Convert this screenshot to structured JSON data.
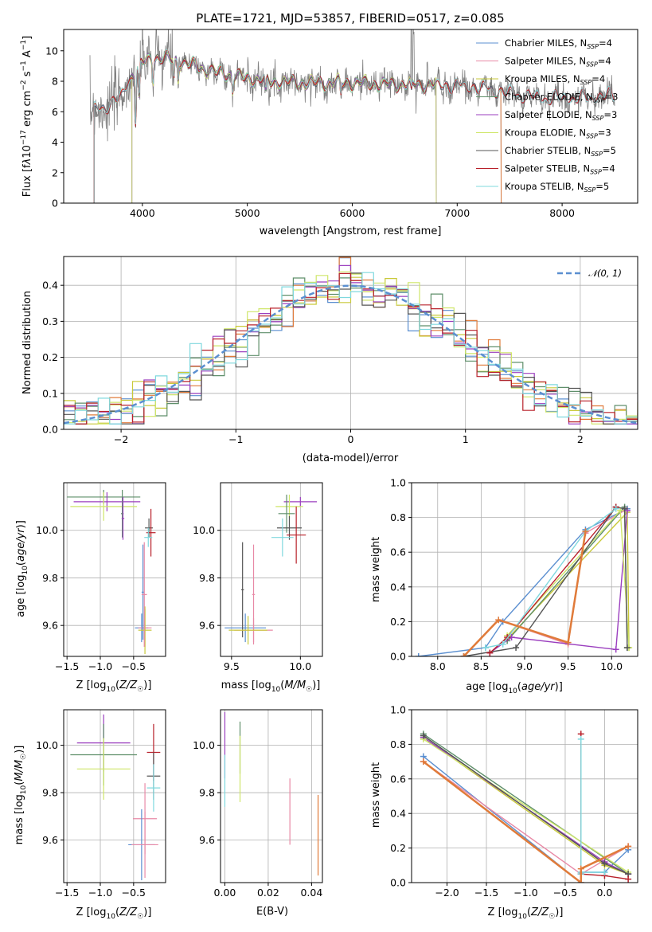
{
  "colors": {
    "Chabrier MILES": "#5b8fd0",
    "Salpeter MILES": "#e889a6",
    "Kroupa MILES": "#c9c93a",
    "Chabrier ELODIE": "#5f8f6a",
    "Salpeter ELODIE": "#9b3fbf",
    "Kroupa ELODIE": "#cfe66a",
    "Chabrier STELIB": "#555555",
    "Salpeter STELIB": "#b8202a",
    "Kroupa STELIB": "#7fd8de",
    "data": "#808080",
    "model_thick": "#e07b3a",
    "gaussian": "#5b8fd0"
  },
  "chart_data": [
    {
      "id": "spectrum",
      "type": "line",
      "title": "PLATE=1721, MJD=53857, FIBERID=0517, z=0.085",
      "xlabel": "wavelength [Angstrom, rest frame]",
      "ylabel": "Flux [fλ10⁻¹⁷ erg cm⁻² s⁻¹ A⁻¹]",
      "xlim": [
        3250,
        8720
      ],
      "ylim": [
        0,
        11.4
      ],
      "xticks": [
        "4000",
        "5000",
        "6000",
        "7000",
        "8000"
      ],
      "xtick_values": [
        4000,
        5000,
        6000,
        7000,
        8000
      ],
      "yticks": [
        "0",
        "2",
        "4",
        "6",
        "8",
        "10"
      ],
      "ytick_values": [
        0,
        2,
        4,
        6,
        8,
        10
      ],
      "legend_position": "top-right",
      "legend": [
        "Chabrier MILES, N_SSP=4",
        "Salpeter MILES, N_SSP=4",
        "Kroupa MILES, N_SSP=4",
        "Chabrier ELODIE, N_SSP=3",
        "Salpeter ELODIE, N_SSP=3",
        "Kroupa ELODIE, N_SSP=3",
        "Chabrier STELIB, N_SSP=5",
        "Salpeter STELIB, N_SSP=4",
        "Kroupa STELIB, N_SSP=5"
      ],
      "continuum": {
        "x": [
          3500,
          3650,
          3800,
          3900,
          4000,
          4100,
          4300,
          4500,
          4700,
          5000,
          5200,
          5500,
          6000,
          6300,
          6600,
          7000,
          7200,
          7500,
          7800,
          8200,
          8500
        ],
        "y": [
          6.0,
          6.3,
          7.0,
          8.4,
          9.2,
          9.6,
          9.4,
          9.0,
          8.6,
          8.2,
          8.0,
          7.9,
          7.9,
          7.8,
          7.8,
          7.7,
          7.6,
          7.2,
          6.9,
          6.9,
          7.1
        ]
      }
    },
    {
      "id": "residuals",
      "type": "line",
      "title": "",
      "xlabel": "(data-model)/error",
      "ylabel": "Normed distribution",
      "xlim": [
        -2.5,
        2.5
      ],
      "ylim": [
        0,
        0.48
      ],
      "xticks": [
        "−2",
        "−1",
        "0",
        "1",
        "2"
      ],
      "xtick_values": [
        -2,
        -1,
        0,
        1,
        2
      ],
      "yticks": [
        "0.0",
        "0.1",
        "0.2",
        "0.3",
        "0.4"
      ],
      "ytick_values": [
        0,
        0.1,
        0.2,
        0.3,
        0.4
      ],
      "grid": true,
      "legend_position": "top-right",
      "legend": [
        "𝒩(0, 1)"
      ],
      "bin_width": 0.1
    },
    {
      "id": "age-vs-Z",
      "type": "scatter",
      "xlabel": "Z [log₁₀(Z/Z☉)]",
      "ylabel": "age  [log₁₀(age/yr)]",
      "xlim": [
        -1.55,
        -0.02
      ],
      "ylim": [
        9.47,
        10.2
      ],
      "xticks": [
        "−1.5",
        "−1.0",
        "−0.5"
      ],
      "xtick_values": [
        -1.5,
        -1.0,
        -0.5
      ],
      "yticks": [
        "9.6",
        "9.8",
        "10.0"
      ],
      "ytick_values": [
        9.6,
        9.8,
        10.0
      ],
      "grid": true,
      "errorbars": [
        {
          "c": "Chabrier ELODIE",
          "x": -0.95,
          "xerr": 0.55,
          "y": 10.14,
          "yerr": 0.03
        },
        {
          "c": "Salpeter ELODIE",
          "x": -0.9,
          "xerr": 0.5,
          "y": 10.12,
          "yerr": 0.04
        },
        {
          "c": "Kroupa ELODIE",
          "x": -0.95,
          "xerr": 0.5,
          "y": 10.1,
          "yerr": 0.06
        },
        {
          "c": "Chabrier ELODIE",
          "x": -0.67,
          "xerr": 0.02,
          "y": 10.07,
          "yerr": 0.1
        },
        {
          "c": "Salpeter ELODIE",
          "x": -0.66,
          "xerr": 0.02,
          "y": 10.05,
          "yerr": 0.09
        },
        {
          "c": "Chabrier STELIB",
          "x": -0.27,
          "xerr": 0.06,
          "y": 10.01,
          "yerr": 0.04
        },
        {
          "c": "Salpeter STELIB",
          "x": -0.24,
          "xerr": 0.07,
          "y": 9.99,
          "yerr": 0.1
        },
        {
          "c": "Kroupa STELIB",
          "x": -0.28,
          "xerr": 0.06,
          "y": 9.97,
          "yerr": 0.04
        },
        {
          "c": "Chabrier MILES",
          "x": -0.38,
          "xerr": 0.1,
          "y": 9.59,
          "yerr": 0.06
        },
        {
          "c": "Salpeter MILES",
          "x": -0.33,
          "xerr": 0.1,
          "y": 9.59,
          "yerr": 0.08
        },
        {
          "c": "Chabrier MILES",
          "x": -0.36,
          "xerr": 0.02,
          "y": 9.74,
          "yerr": 0.2
        },
        {
          "c": "Kroupa MILES",
          "x": -0.33,
          "xerr": 0.1,
          "y": 9.58,
          "yerr": 0.1
        },
        {
          "c": "Salpeter MILES",
          "x": -0.34,
          "xerr": 0.04,
          "y": 9.73,
          "yerr": 0.22
        }
      ]
    },
    {
      "id": "age-vs-mass",
      "type": "scatter",
      "xlabel": "mass [log₁₀(M/M☉)]",
      "ylabel": "",
      "xlim": [
        9.42,
        10.16
      ],
      "ylim": [
        9.47,
        10.2
      ],
      "xticks": [
        "9.5",
        "10.0"
      ],
      "xtick_values": [
        9.5,
        10.0
      ],
      "yticks": [
        "9.6",
        "9.8",
        "10.0"
      ],
      "ytick_values": [
        9.6,
        9.8,
        10.0
      ],
      "grid": true,
      "errorbars": [
        {
          "c": "Salpeter ELODIE",
          "x": 10.0,
          "xerr": 0.12,
          "y": 10.12,
          "yerr": 0.02
        },
        {
          "c": "Kroupa ELODIE",
          "x": 9.92,
          "xerr": 0.1,
          "y": 10.1,
          "yerr": 0.05
        },
        {
          "c": "Chabrier ELODIE",
          "x": 9.9,
          "xerr": 0.06,
          "y": 10.07,
          "yerr": 0.08
        },
        {
          "c": "Chabrier STELIB",
          "x": 9.92,
          "xerr": 0.09,
          "y": 10.01,
          "yerr": 0.05
        },
        {
          "c": "Salpeter STELIB",
          "x": 9.97,
          "xerr": 0.07,
          "y": 9.98,
          "yerr": 0.12
        },
        {
          "c": "Kroupa STELIB",
          "x": 9.87,
          "xerr": 0.08,
          "y": 9.97,
          "yerr": 0.08
        },
        {
          "c": "Chabrier MILES",
          "x": 9.6,
          "xerr": 0.15,
          "y": 9.59,
          "yerr": 0.06
        },
        {
          "c": "Salpeter MILES",
          "x": 9.66,
          "xerr": 0.14,
          "y": 9.58,
          "yerr": 0.05
        },
        {
          "c": "Chabrier STELIB",
          "x": 9.58,
          "xerr": 0.01,
          "y": 9.75,
          "yerr": 0.2
        },
        {
          "c": "Salpeter MILES",
          "x": 9.66,
          "xerr": 0.01,
          "y": 9.73,
          "yerr": 0.21
        },
        {
          "c": "Kroupa MILES",
          "x": 9.62,
          "xerr": 0.14,
          "y": 9.58,
          "yerr": 0.06
        }
      ]
    },
    {
      "id": "weight-vs-age",
      "type": "line",
      "xlabel": "age  [log₁₀(age/yr)]",
      "ylabel": "mass weight",
      "xlim": [
        7.7,
        10.3
      ],
      "ylim": [
        0,
        1.0
      ],
      "xticks": [
        "8.0",
        "8.5",
        "9.0",
        "9.5",
        "10.0"
      ],
      "xtick_values": [
        8.0,
        8.5,
        9.0,
        9.5,
        10.0
      ],
      "yticks": [
        "0.0",
        "0.2",
        "0.4",
        "0.6",
        "0.8",
        "1.0"
      ],
      "ytick_values": [
        0,
        0.2,
        0.4,
        0.6,
        0.8,
        1.0
      ],
      "grid": true,
      "series": [
        {
          "c": "Chabrier MILES",
          "x": [
            7.78,
            8.55,
            8.75,
            9.7,
            10.18
          ],
          "y": [
            0.0,
            0.05,
            0.2,
            0.73,
            0.85
          ]
        },
        {
          "c": "Salpeter MILES",
          "x": [
            8.3,
            8.7,
            9.5,
            9.7,
            10.15
          ],
          "y": [
            0.0,
            0.21,
            0.07,
            0.71,
            0.84
          ]
        },
        {
          "c": "Kroupa MILES",
          "x": [
            8.8,
            10.18,
            10.2
          ],
          "y": [
            0.1,
            0.83,
            0.05
          ]
        },
        {
          "c": "Chabrier ELODIE",
          "x": [
            8.8,
            10.15,
            10.18
          ],
          "y": [
            0.09,
            0.86,
            0.05
          ]
        },
        {
          "c": "Salpeter ELODIE",
          "x": [
            8.6,
            8.85,
            10.05,
            10.18
          ],
          "y": [
            0.02,
            0.11,
            0.04,
            0.84
          ]
        },
        {
          "c": "Kroupa ELODIE",
          "x": [
            8.8,
            10.1,
            10.2
          ],
          "y": [
            0.12,
            0.84,
            0.05
          ]
        },
        {
          "c": "Chabrier STELIB",
          "x": [
            8.3,
            8.9,
            10.05,
            10.15,
            10.18
          ],
          "y": [
            0.0,
            0.05,
            0.86,
            0.85,
            0.05
          ]
        },
        {
          "c": "Salpeter STELIB",
          "x": [
            8.6,
            8.8,
            10.05
          ],
          "y": [
            0.02,
            0.11,
            0.86
          ]
        },
        {
          "c": "Kroupa STELIB",
          "x": [
            8.55,
            8.75,
            9.7,
            10.05
          ],
          "y": [
            0.05,
            0.07,
            0.72,
            0.85
          ]
        },
        {
          "c": "model_thick",
          "x": [
            8.3,
            8.7,
            9.5,
            9.7
          ],
          "y": [
            0.0,
            0.21,
            0.08,
            0.72
          ]
        }
      ]
    },
    {
      "id": "mass-vs-Z",
      "type": "scatter",
      "xlabel": "Z [log₁₀(Z/Z☉)]",
      "ylabel": "mass [log₁₀(M/M☉)]",
      "xlim": [
        -1.55,
        -0.02
      ],
      "ylim": [
        9.42,
        10.15
      ],
      "xticks": [
        "−1.5",
        "−1.0",
        "−0.5"
      ],
      "xtick_values": [
        -1.5,
        -1.0,
        -0.5
      ],
      "yticks": [
        "9.6",
        "9.8",
        "10.0"
      ],
      "ytick_values": [
        9.6,
        9.8,
        10.0
      ],
      "grid": true,
      "errorbars": [
        {
          "c": "Salpeter ELODIE",
          "x": -0.95,
          "xerr": 0.4,
          "y": 10.01,
          "yerr": 0.12
        },
        {
          "c": "Chabrier ELODIE",
          "x": -0.95,
          "xerr": 0.5,
          "y": 9.96,
          "yerr": 0.13
        },
        {
          "c": "Kroupa ELODIE",
          "x": -0.95,
          "xerr": 0.4,
          "y": 9.9,
          "yerr": 0.13
        },
        {
          "c": "Salpeter STELIB",
          "x": -0.2,
          "xerr": 0.1,
          "y": 9.97,
          "yerr": 0.12
        },
        {
          "c": "Chabrier STELIB",
          "x": -0.2,
          "xerr": 0.1,
          "y": 9.87,
          "yerr": 0.1
        },
        {
          "c": "Kroupa STELIB",
          "x": -0.2,
          "xerr": 0.1,
          "y": 9.82,
          "yerr": 0.1
        },
        {
          "c": "Salpeter MILES",
          "x": -0.33,
          "xerr": 0.18,
          "y": 9.69,
          "yerr": 0.15
        },
        {
          "c": "Chabrier MILES",
          "x": -0.38,
          "xerr": 0.2,
          "y": 9.58,
          "yerr": 0.15
        },
        {
          "c": "Salpeter MILES",
          "x": -0.33,
          "xerr": 0.2,
          "y": 9.58,
          "yerr": 0.14
        }
      ]
    },
    {
      "id": "mass-vs-ebv",
      "type": "scatter",
      "xlabel": "E(B-V)",
      "ylabel": "",
      "xlim": [
        -0.002,
        0.045
      ],
      "ylim": [
        9.42,
        10.15
      ],
      "xticks": [
        "0.00",
        "0.02",
        "0.04"
      ],
      "xtick_values": [
        0.0,
        0.02,
        0.04
      ],
      "yticks": [
        "9.6",
        "9.8",
        "10.0"
      ],
      "ytick_values": [
        9.6,
        9.8,
        10.0
      ],
      "grid": true,
      "errorbars": [
        {
          "c": "Salpeter ELODIE",
          "x": 0.0,
          "xerr": 0,
          "y": 10.0,
          "yerr": 0.14
        },
        {
          "c": "Kroupa STELIB",
          "x": 0.0,
          "xerr": 0,
          "y": 9.85,
          "yerr": 0.11
        },
        {
          "c": "Chabrier ELODIE",
          "x": 0.007,
          "xerr": 0,
          "y": 9.99,
          "yerr": 0.11
        },
        {
          "c": "Kroupa ELODIE",
          "x": 0.007,
          "xerr": 0,
          "y": 9.9,
          "yerr": 0.14
        },
        {
          "c": "Salpeter MILES",
          "x": 0.03,
          "xerr": 0,
          "y": 9.72,
          "yerr": 0.14
        },
        {
          "c": "model_thick",
          "x": 0.043,
          "xerr": 0,
          "y": 9.62,
          "yerr": 0.17
        }
      ]
    },
    {
      "id": "weight-vs-Z",
      "type": "line",
      "xlabel": "Z [log₁₀(Z/Z☉)]",
      "ylabel": "mass weight",
      "xlim": [
        -2.45,
        0.42
      ],
      "ylim": [
        0,
        1.0
      ],
      "xticks": [
        "−2.0",
        "−1.5",
        "−1.0",
        "−0.5",
        "0.0"
      ],
      "xtick_values": [
        -2.0,
        -1.5,
        -1.0,
        -0.5,
        0.0
      ],
      "yticks": [
        "0.0",
        "0.2",
        "0.4",
        "0.6",
        "0.8",
        "1.0"
      ],
      "ytick_values": [
        0,
        0.2,
        0.4,
        0.6,
        0.8,
        1.0
      ],
      "grid": true,
      "series": [
        {
          "c": "Chabrier MILES",
          "x": [
            -2.3,
            -0.3,
            -0.3,
            0.0,
            0.3
          ],
          "y": [
            0.73,
            0.0,
            0.06,
            0.06,
            0.19
          ]
        },
        {
          "c": "Salpeter MILES",
          "x": [
            -2.3,
            -0.3,
            0.3
          ],
          "y": [
            0.7,
            0.05,
            0.21
          ]
        },
        {
          "c": "Kroupa MILES",
          "x": [
            -2.3,
            0.0,
            0.3
          ],
          "y": [
            0.84,
            0.1,
            0.05
          ]
        },
        {
          "c": "Chabrier ELODIE",
          "x": [
            -2.3,
            0.3
          ],
          "y": [
            0.86,
            0.05
          ]
        },
        {
          "c": "Salpeter ELODIE",
          "x": [
            -2.3,
            0.0,
            0.3
          ],
          "y": [
            0.84,
            0.12,
            0.05
          ]
        },
        {
          "c": "Kroupa ELODIE",
          "x": [
            -2.3,
            0.3
          ],
          "y": [
            0.83,
            0.06
          ]
        },
        {
          "c": "Chabrier STELIB",
          "x": [
            -2.3,
            0.0,
            0.3
          ],
          "y": [
            0.85,
            0.11,
            0.05
          ]
        },
        {
          "c": "Salpeter STELIB",
          "x": [
            -0.3,
            -0.3,
            0.0,
            0.3
          ],
          "y": [
            0.86,
            0.05,
            0.04,
            0.02
          ]
        },
        {
          "c": "Kroupa STELIB",
          "x": [
            -0.3,
            -0.3,
            -0.3,
            0.0
          ],
          "y": [
            0.83,
            0.05,
            0.06,
            0.06
          ]
        },
        {
          "c": "model_thick",
          "x": [
            -2.3,
            -0.3,
            -0.3,
            0.3
          ],
          "y": [
            0.7,
            0.0,
            0.08,
            0.21
          ]
        }
      ]
    }
  ]
}
